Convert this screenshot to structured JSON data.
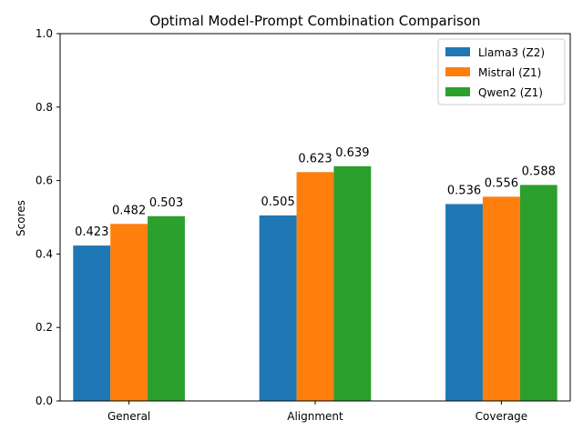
{
  "chart_data": {
    "type": "bar",
    "title": "Optimal Model-Prompt Combination Comparison",
    "xlabel": "",
    "ylabel": "Scores",
    "ylim": [
      0,
      1.0
    ],
    "yticks": [
      "0.0",
      "0.2",
      "0.4",
      "0.6",
      "0.8",
      "1.0"
    ],
    "categories": [
      "General",
      "Alignment",
      "Coverage"
    ],
    "series": [
      {
        "name": "Llama3 (Z2)",
        "color": "#1f77b4",
        "values": [
          0.423,
          0.505,
          0.536
        ]
      },
      {
        "name": "Mistral (Z1)",
        "color": "#ff7f0e",
        "values": [
          0.482,
          0.623,
          0.556
        ]
      },
      {
        "name": "Qwen2 (Z1)",
        "color": "#2ca02c",
        "values": [
          0.503,
          0.639,
          0.588
        ]
      }
    ],
    "data_labels": [
      [
        "0.423",
        "0.505",
        "0.536"
      ],
      [
        "0.482",
        "0.623",
        "0.556"
      ],
      [
        "0.503",
        "0.639",
        "0.588"
      ]
    ],
    "legend_position": "top-right",
    "grid": false
  }
}
